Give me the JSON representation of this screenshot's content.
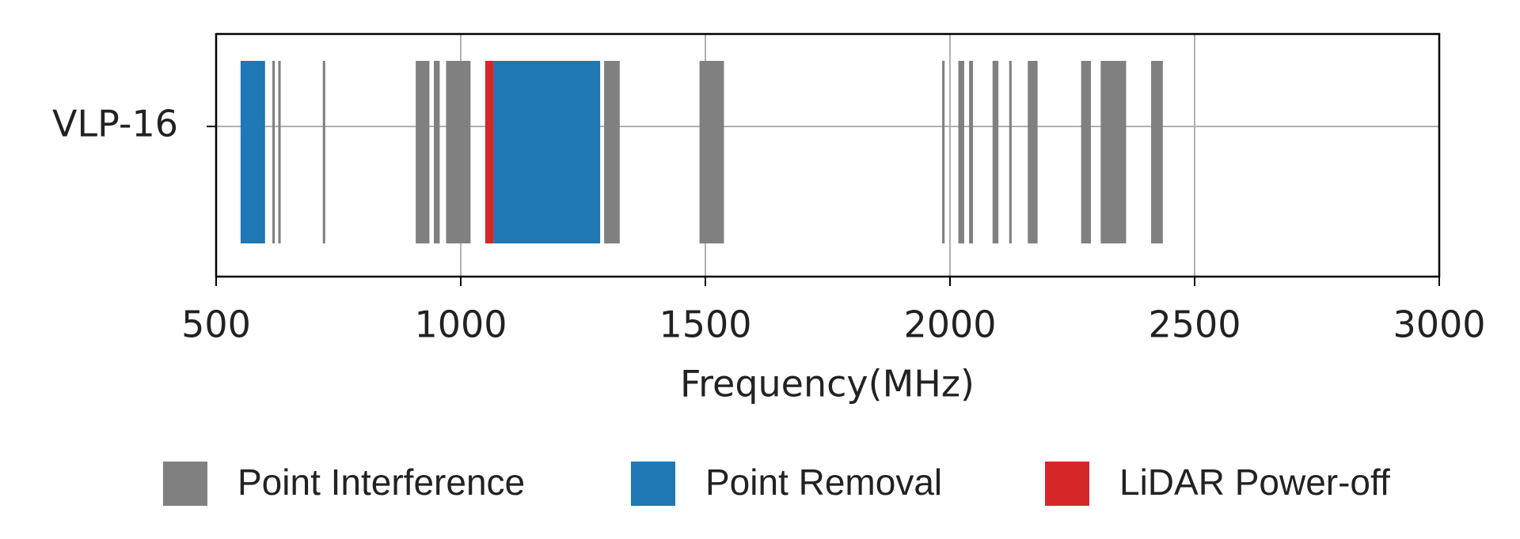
{
  "chart_data": {
    "type": "broken_barh",
    "categories": [
      "VLP-16"
    ],
    "xlabel": "Frequency(MHz)",
    "xlim": [
      500,
      3000
    ],
    "xticks": [
      500,
      1000,
      1500,
      2000,
      2500,
      3000
    ],
    "grid": true,
    "legend": "bottom",
    "series": [
      {
        "name": "Point Interference",
        "color": "#808080",
        "ranges": [
          [
            615,
            5
          ],
          [
            627,
            5
          ],
          [
            718,
            5
          ],
          [
            908,
            28
          ],
          [
            945,
            12
          ],
          [
            970,
            50
          ],
          [
            1293,
            32
          ],
          [
            1488,
            50
          ],
          [
            1984,
            5
          ],
          [
            2017,
            12
          ],
          [
            2039,
            8
          ],
          [
            2087,
            12
          ],
          [
            2121,
            5
          ],
          [
            2159,
            20
          ],
          [
            2268,
            20
          ],
          [
            2308,
            52
          ],
          [
            2411,
            24
          ]
        ]
      },
      {
        "name": "Point Removal",
        "color": "#1f77b4",
        "ranges": [
          [
            550,
            50
          ],
          [
            1067,
            218
          ]
        ]
      },
      {
        "name": "LiDAR Power-off",
        "color": "#d62728",
        "ranges": [
          [
            1050,
            17
          ]
        ]
      }
    ]
  }
}
